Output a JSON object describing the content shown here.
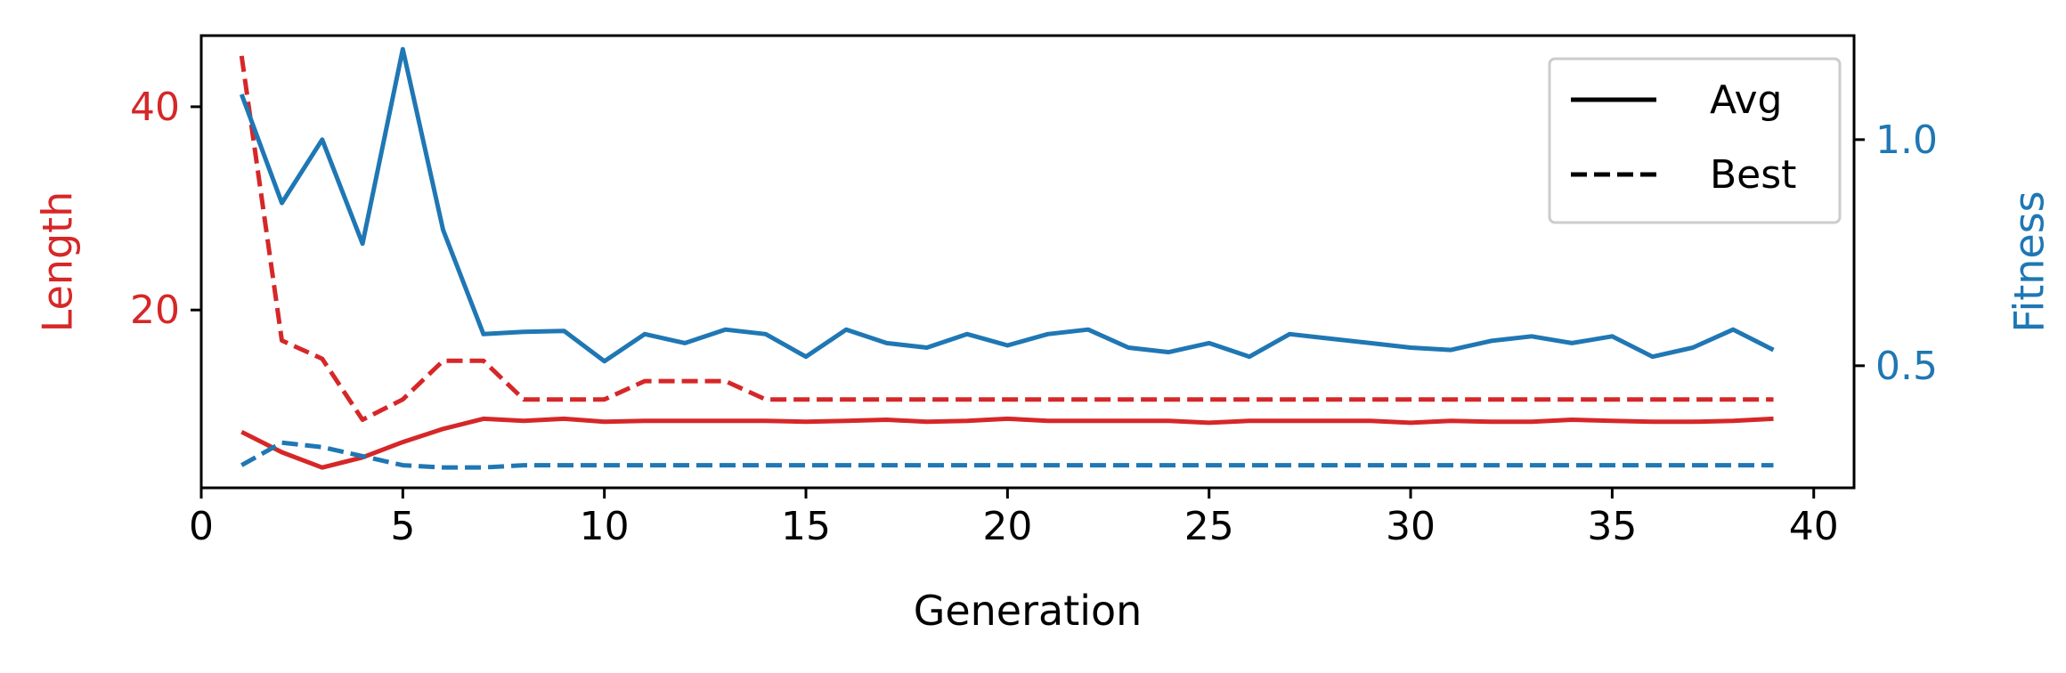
{
  "chart_data": {
    "type": "line",
    "xlabel": "Generation",
    "ylabel_left": "Length",
    "ylabel_right": "Fitness",
    "xlim": [
      0,
      41
    ],
    "ylim_left": [
      2.5,
      47
    ],
    "ylim_right": [
      0.23,
      1.23
    ],
    "xticks": [
      0,
      5,
      10,
      15,
      20,
      25,
      30,
      35,
      40
    ],
    "yticks_left": [
      20,
      40
    ],
    "yticks_right": [
      0.5,
      1.0
    ],
    "x": [
      1,
      2,
      3,
      4,
      5,
      6,
      7,
      8,
      9,
      10,
      11,
      12,
      13,
      14,
      15,
      16,
      17,
      18,
      19,
      20,
      21,
      22,
      23,
      24,
      25,
      26,
      27,
      28,
      29,
      30,
      31,
      32,
      33,
      34,
      35,
      36,
      37,
      38,
      39
    ],
    "grid": false,
    "legend": {
      "position": "upper right",
      "entries": [
        {
          "label": "Avg",
          "style": "solid"
        },
        {
          "label": "Best",
          "style": "dashed"
        }
      ]
    },
    "series": [
      {
        "axis": "left",
        "metric": "Length",
        "style": "solid",
        "color": "#d62728",
        "values": [
          8.0,
          6.0,
          4.5,
          5.5,
          7.0,
          8.3,
          9.3,
          9.1,
          9.3,
          9.0,
          9.1,
          9.1,
          9.1,
          9.1,
          9.0,
          9.1,
          9.2,
          9.0,
          9.1,
          9.3,
          9.1,
          9.1,
          9.1,
          9.1,
          8.9,
          9.1,
          9.1,
          9.1,
          9.1,
          8.9,
          9.1,
          9.0,
          9.0,
          9.2,
          9.1,
          9.0,
          9.0,
          9.1,
          9.3
        ]
      },
      {
        "axis": "left",
        "metric": "Length",
        "style": "dashed",
        "color": "#d62728",
        "values": [
          45.0,
          17.0,
          15.2,
          9.2,
          11.2,
          15.0,
          15.0,
          11.2,
          11.2,
          11.2,
          13.0,
          13.0,
          13.0,
          11.2,
          11.2,
          11.2,
          11.2,
          11.2,
          11.2,
          11.2,
          11.2,
          11.2,
          11.2,
          11.2,
          11.2,
          11.2,
          11.2,
          11.2,
          11.2,
          11.2,
          11.2,
          11.2,
          11.2,
          11.2,
          11.2,
          11.2,
          11.2,
          11.2,
          11.2
        ]
      },
      {
        "axis": "right",
        "metric": "Fitness",
        "style": "solid",
        "color": "#1f77b4",
        "values": [
          1.1,
          0.86,
          1.0,
          0.77,
          1.2,
          0.8,
          0.57,
          0.575,
          0.577,
          0.51,
          0.57,
          0.55,
          0.58,
          0.57,
          0.52,
          0.58,
          0.55,
          0.54,
          0.57,
          0.545,
          0.57,
          0.58,
          0.54,
          0.53,
          0.55,
          0.52,
          0.57,
          0.56,
          0.55,
          0.54,
          0.535,
          0.555,
          0.565,
          0.55,
          0.565,
          0.52,
          0.54,
          0.58,
          0.535
        ]
      },
      {
        "axis": "right",
        "metric": "Fitness",
        "style": "dashed",
        "color": "#1f77b4",
        "values": [
          0.28,
          0.33,
          0.32,
          0.3,
          0.28,
          0.275,
          0.275,
          0.28,
          0.28,
          0.28,
          0.28,
          0.28,
          0.28,
          0.28,
          0.28,
          0.28,
          0.28,
          0.28,
          0.28,
          0.28,
          0.28,
          0.28,
          0.28,
          0.28,
          0.28,
          0.28,
          0.28,
          0.28,
          0.28,
          0.28,
          0.28,
          0.28,
          0.28,
          0.28,
          0.28,
          0.28,
          0.28,
          0.28,
          0.28
        ]
      }
    ]
  }
}
